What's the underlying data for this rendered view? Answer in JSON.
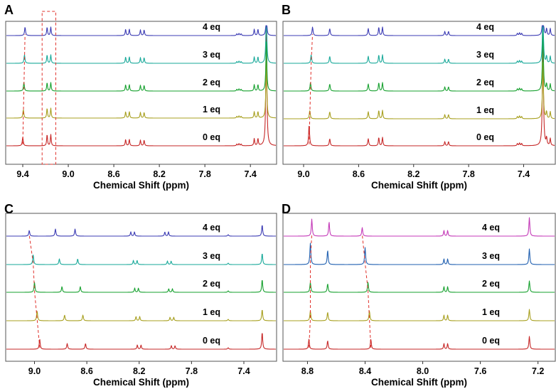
{
  "chart_data": [
    {
      "type": "line",
      "panel": "A",
      "title": "",
      "xlabel": "Chemical Shift (ppm)",
      "ylabel": "",
      "xlim": [
        9.55,
        7.17
      ],
      "xticks": [
        9.4,
        9.0,
        8.6,
        8.2,
        7.8,
        7.4
      ],
      "grid": false,
      "series": [
        {
          "name": "0 eq",
          "color": "#c62828"
        },
        {
          "name": "1 eq",
          "color": "#a8a020"
        },
        {
          "name": "2 eq",
          "color": "#17a12f"
        },
        {
          "name": "3 eq",
          "color": "#19a99a"
        },
        {
          "name": "4 eq",
          "color": "#3c3cb4"
        }
      ],
      "peaks": [
        {
          "label": "guest signal",
          "ppm": [
            9.4,
            9.395,
            9.39,
            9.385,
            9.38
          ]
        },
        {
          "label": "doublet",
          "ppm": [
            9.17,
            9.17,
            9.17,
            9.17,
            9.17
          ]
        },
        {
          "label": "doublet",
          "ppm": [
            8.48,
            8.48,
            8.48,
            8.48,
            8.48
          ]
        },
        {
          "label": "doublet",
          "ppm": [
            8.35,
            8.35,
            8.35,
            8.35,
            8.35
          ]
        },
        {
          "label": "multiplet",
          "ppm": [
            7.5,
            7.5,
            7.5,
            7.5,
            7.5
          ]
        },
        {
          "label": "doublet",
          "ppm": [
            7.35,
            7.35,
            7.35,
            7.35,
            7.35
          ]
        },
        {
          "label": "solvent",
          "ppm": [
            7.26,
            7.26,
            7.26,
            7.26,
            7.26
          ]
        }
      ],
      "annotations": [
        "dashed box around 9.17 ppm peaks"
      ]
    },
    {
      "type": "line",
      "panel": "B",
      "title": "",
      "xlabel": "Chemical Shift (ppm)",
      "ylabel": "",
      "xlim": [
        9.15,
        7.17
      ],
      "xticks": [
        9.0,
        8.6,
        8.2,
        7.8,
        7.4
      ],
      "grid": false,
      "series": [
        {
          "name": "0 eq",
          "color": "#c62828"
        },
        {
          "name": "1 eq",
          "color": "#a8a020"
        },
        {
          "name": "2 eq",
          "color": "#17a12f"
        },
        {
          "name": "3 eq",
          "color": "#19a99a"
        },
        {
          "name": "4 eq",
          "color": "#3c3cb4"
        }
      ],
      "peaks": [
        {
          "label": "shifting",
          "ppm": [
            8.96,
            8.955,
            8.95,
            8.945,
            8.935
          ]
        },
        {
          "label": "singlet",
          "ppm": [
            8.81,
            8.81,
            8.81,
            8.81,
            8.81
          ]
        },
        {
          "label": "singlet",
          "ppm": [
            8.53,
            8.53,
            8.53,
            8.53,
            8.53
          ]
        },
        {
          "label": "doublet",
          "ppm": [
            8.44,
            8.44,
            8.44,
            8.44,
            8.44
          ]
        },
        {
          "label": "doublet",
          "ppm": [
            7.96,
            7.96,
            7.96,
            7.96,
            7.96
          ]
        },
        {
          "label": "multiplet",
          "ppm": [
            7.43,
            7.43,
            7.43,
            7.43,
            7.43
          ]
        },
        {
          "label": "solvent",
          "ppm": [
            7.26,
            7.26,
            7.26,
            7.26,
            7.26
          ]
        },
        {
          "label": "doublet",
          "ppm": [
            7.22,
            7.22,
            7.22,
            7.22,
            7.22
          ]
        }
      ]
    },
    {
      "type": "line",
      "panel": "C",
      "title": "",
      "xlabel": "Chemical Shift (ppm)",
      "ylabel": "",
      "xlim": [
        9.22,
        7.15
      ],
      "xticks": [
        9.0,
        8.6,
        8.2,
        7.8,
        7.4
      ],
      "grid": false,
      "series": [
        {
          "name": "0 eq",
          "color": "#c62828"
        },
        {
          "name": "1 eq",
          "color": "#a8a020"
        },
        {
          "name": "2 eq",
          "color": "#17a12f"
        },
        {
          "name": "3 eq",
          "color": "#19a99a"
        },
        {
          "name": "4 eq",
          "color": "#3c3cb4"
        }
      ],
      "peaks": [
        {
          "label": "shifting",
          "ppm": [
            8.96,
            8.98,
            9.0,
            9.01,
            9.04
          ]
        },
        {
          "label": "singlet",
          "ppm": [
            8.75,
            8.77,
            8.79,
            8.81,
            8.84
          ]
        },
        {
          "label": "singlet",
          "ppm": [
            8.61,
            8.63,
            8.65,
            8.67,
            8.69
          ]
        },
        {
          "label": "doublet",
          "ppm": [
            8.2,
            8.21,
            8.22,
            8.23,
            8.25
          ]
        },
        {
          "label": "doublet",
          "ppm": [
            7.94,
            7.95,
            7.96,
            7.97,
            7.99
          ]
        },
        {
          "label": "small",
          "ppm": [
            7.52,
            7.52,
            7.52,
            7.52,
            7.52
          ]
        },
        {
          "label": "solvent",
          "ppm": [
            7.26,
            7.26,
            7.26,
            7.26,
            7.26
          ]
        }
      ]
    },
    {
      "type": "line",
      "panel": "D",
      "title": "",
      "xlabel": "Chemical Shift (ppm)",
      "ylabel": "",
      "xlim": [
        8.97,
        7.08
      ],
      "xticks": [
        8.8,
        8.4,
        8.0,
        7.6,
        7.2
      ],
      "grid": false,
      "series": [
        {
          "name": "0 eq",
          "color": "#c62828"
        },
        {
          "name": "1 eq",
          "color": "#a8a020"
        },
        {
          "name": "2 eq",
          "color": "#17a12f"
        },
        {
          "name": "3 eq",
          "color": "#1f5fb0"
        },
        {
          "name": "4 eq",
          "color": "#c43ab8"
        }
      ],
      "peaks": [
        {
          "label": "shifting",
          "ppm": [
            8.79,
            8.78,
            8.78,
            8.78,
            8.77
          ]
        },
        {
          "label": "singlet",
          "ppm": [
            8.66,
            8.66,
            8.66,
            8.66,
            8.65
          ]
        },
        {
          "label": "shifting",
          "ppm": [
            8.36,
            8.37,
            8.38,
            8.4,
            8.42
          ]
        },
        {
          "label": "doublet",
          "ppm": [
            7.84,
            7.84,
            7.84,
            7.84,
            7.84
          ]
        },
        {
          "label": "solvent",
          "ppm": [
            7.26,
            7.26,
            7.26,
            7.26,
            7.26
          ]
        }
      ]
    }
  ]
}
